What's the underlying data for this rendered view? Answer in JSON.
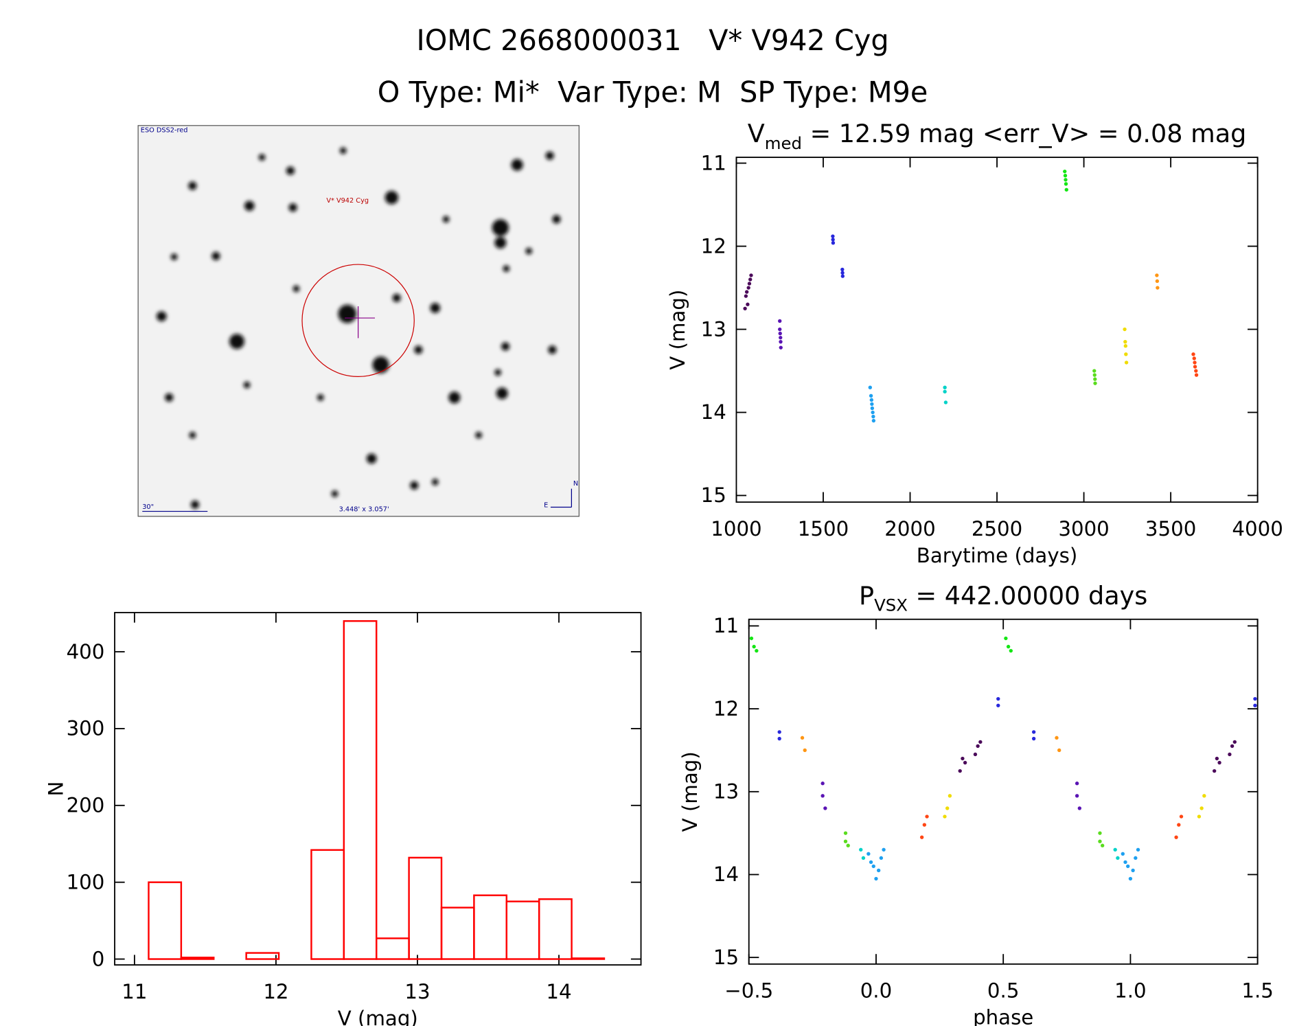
{
  "header": {
    "title": "IOMC 2668000031   V* V942 Cyg",
    "subtitle": "O Type: Mi*  Var Type: M  SP Type: M9e"
  },
  "image": {
    "survey": "ESO DSS2-red",
    "target": "V* V942 Cyg",
    "scale": "30\"",
    "fov": "3.448' x 3.057'",
    "compass_n": "N",
    "compass_e": "E"
  },
  "chart_data": [
    {
      "type": "histogram",
      "xlabel": "V (mag)",
      "ylabel": "N",
      "color": "#ff0000",
      "bins": [
        11.1,
        11.33,
        11.56,
        11.79,
        12.02,
        12.25,
        12.48,
        12.71,
        12.94,
        13.17,
        13.4,
        13.63,
        13.86,
        14.09,
        14.32
      ],
      "counts": [
        100,
        2,
        0,
        8,
        0,
        142,
        440,
        27,
        132,
        67,
        83,
        75,
        78,
        1
      ],
      "xlim": [
        10.86,
        14.58
      ],
      "ylim": [
        -7.6,
        451
      ],
      "xticks": [
        11,
        12,
        13,
        14
      ],
      "yticks": [
        0,
        100,
        200,
        300,
        400
      ]
    },
    {
      "type": "scatter",
      "title": {
        "main": "V",
        "sub": "med",
        "rest": " = 12.59 mag <err_V> = 0.08 mag"
      },
      "xlabel": "Barytime (days)",
      "ylabel": "V (mag)",
      "xlim": [
        1000,
        4000
      ],
      "ylim": [
        15.08,
        10.93
      ],
      "xticks": [
        1000,
        1500,
        2000,
        2500,
        3000,
        3500,
        4000
      ],
      "yticks": [
        11,
        12,
        13,
        14,
        15
      ],
      "series": [
        {
          "color": "#4b0a5a",
          "x": [
            1050,
            1055,
            1060,
            1065,
            1070,
            1075,
            1080,
            1085
          ],
          "values": [
            12.75,
            12.6,
            12.55,
            12.7,
            12.5,
            12.45,
            12.4,
            12.35
          ]
        },
        {
          "color": "#5a14b4",
          "x": [
            1250,
            1250,
            1252,
            1254,
            1255,
            1256
          ],
          "values": [
            12.9,
            13.0,
            13.05,
            13.1,
            13.15,
            13.22
          ]
        },
        {
          "color": "#2828dc",
          "x": [
            1555,
            1556,
            1557,
            1610,
            1611,
            1612
          ],
          "values": [
            11.88,
            11.92,
            11.96,
            12.28,
            12.32,
            12.36
          ]
        },
        {
          "color": "#1ea0f0",
          "x": [
            1770,
            1775,
            1778,
            1780,
            1782,
            1785,
            1788,
            1790
          ],
          "values": [
            13.7,
            13.8,
            13.85,
            13.9,
            13.95,
            14.0,
            14.05,
            14.1
          ]
        },
        {
          "color": "#00d2c8",
          "x": [
            2200,
            2200,
            2205
          ],
          "values": [
            13.7,
            13.75,
            13.88
          ]
        },
        {
          "color": "#14e614",
          "x": [
            2890,
            2893,
            2895,
            2897,
            2900
          ],
          "values": [
            11.1,
            11.15,
            11.2,
            11.25,
            11.32
          ]
        },
        {
          "color": "#5adc1e",
          "x": [
            3060,
            3062,
            3064,
            3065
          ],
          "values": [
            13.5,
            13.55,
            13.6,
            13.65
          ]
        },
        {
          "color": "#f0dc00",
          "x": [
            3235,
            3238,
            3240,
            3242,
            3245
          ],
          "values": [
            13.0,
            13.15,
            13.2,
            13.3,
            13.4
          ]
        },
        {
          "color": "#ff9614",
          "x": [
            3420,
            3422,
            3424
          ],
          "values": [
            12.35,
            12.42,
            12.5
          ]
        },
        {
          "color": "#ff4614",
          "x": [
            3630,
            3635,
            3638,
            3640,
            3645,
            3648
          ],
          "values": [
            13.3,
            13.35,
            13.4,
            13.45,
            13.5,
            13.55
          ]
        }
      ]
    },
    {
      "type": "scatter",
      "title": {
        "main": "P",
        "sub": "VSX",
        "rest": " = 442.00000 days"
      },
      "xlabel": "phase",
      "ylabel": "V (mag)",
      "xlim": [
        -0.5,
        1.5
      ],
      "ylim": [
        15.08,
        10.92
      ],
      "xticks": [
        {
          "value": -0.5,
          "label": "−0.5"
        },
        {
          "value": 0,
          "label": "0.0"
        },
        {
          "value": 0.5,
          "label": "0.5"
        },
        {
          "value": 1,
          "label": "1.0"
        },
        {
          "value": 1.5,
          "label": "1.5"
        }
      ],
      "yticks": [
        11,
        12,
        13,
        14,
        15
      ],
      "series": [
        {
          "color": "#4b0a5a",
          "x": [
            0.33,
            0.34,
            0.35,
            0.39,
            0.4,
            0.41,
            1.33,
            1.34,
            1.35,
            1.39,
            1.4,
            1.41
          ],
          "values": [
            12.75,
            12.6,
            12.65,
            12.55,
            12.45,
            12.4,
            12.75,
            12.6,
            12.65,
            12.55,
            12.45,
            12.4
          ]
        },
        {
          "color": "#5a14b4",
          "x": [
            -0.21,
            -0.21,
            -0.2,
            0.79,
            0.79,
            0.8
          ],
          "values": [
            12.9,
            13.05,
            13.2,
            12.9,
            13.05,
            13.2
          ]
        },
        {
          "color": "#2828dc",
          "x": [
            -0.38,
            -0.38,
            0.48,
            0.48,
            0.62,
            0.62,
            1.49,
            1.49
          ],
          "values": [
            12.28,
            12.36,
            11.88,
            11.96,
            12.28,
            12.36,
            11.88,
            11.96
          ]
        },
        {
          "color": "#1ea0f0",
          "x": [
            -0.03,
            -0.02,
            -0.01,
            0,
            0.01,
            0.02,
            0.03,
            0.97,
            0.98,
            0.99,
            1,
            1.01,
            1.02,
            1.03
          ],
          "values": [
            13.75,
            13.85,
            13.9,
            14.05,
            13.95,
            13.8,
            13.7,
            13.75,
            13.85,
            13.9,
            14.05,
            13.95,
            13.8,
            13.7
          ]
        },
        {
          "color": "#00d2c8",
          "x": [
            -0.06,
            -0.05,
            0.94,
            0.95
          ],
          "values": [
            13.7,
            13.8,
            13.7,
            13.8
          ]
        },
        {
          "color": "#14e614",
          "x": [
            -0.49,
            -0.48,
            -0.47,
            0.51,
            0.52,
            0.53
          ],
          "values": [
            11.15,
            11.25,
            11.3,
            11.15,
            11.25,
            11.3
          ]
        },
        {
          "color": "#5adc1e",
          "x": [
            -0.12,
            -0.12,
            -0.11,
            0.88,
            0.88,
            0.89
          ],
          "values": [
            13.5,
            13.6,
            13.65,
            13.5,
            13.6,
            13.65
          ]
        },
        {
          "color": "#f0dc00",
          "x": [
            0.27,
            0.28,
            0.29,
            1.27,
            1.28,
            1.29
          ],
          "values": [
            13.3,
            13.2,
            13.05,
            13.3,
            13.2,
            13.05
          ]
        },
        {
          "color": "#ff9614",
          "x": [
            -0.29,
            -0.28,
            0.71,
            0.72
          ],
          "values": [
            12.35,
            12.5,
            12.35,
            12.5
          ]
        },
        {
          "color": "#ff4614",
          "x": [
            0.18,
            0.19,
            0.2,
            1.18,
            1.19,
            1.2
          ],
          "values": [
            13.55,
            13.4,
            13.3,
            13.55,
            13.4,
            13.3
          ]
        }
      ]
    }
  ]
}
